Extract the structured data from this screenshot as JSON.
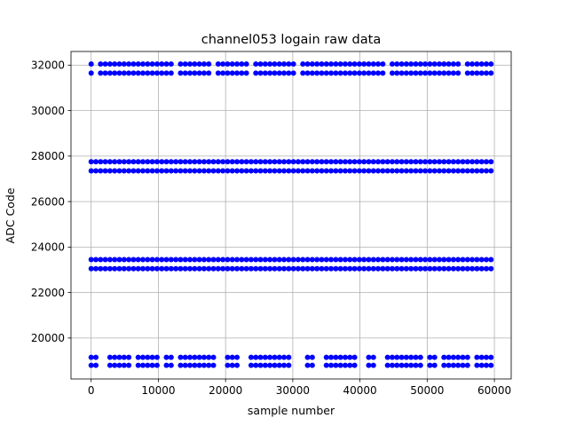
{
  "chart_data": {
    "type": "scatter",
    "title": "channel053 logain raw data",
    "xlabel": "sample number",
    "ylabel": "ADC Code",
    "xlim": [
      -3000,
      62500
    ],
    "ylim": [
      18200,
      32600
    ],
    "xticks": [
      0,
      10000,
      20000,
      30000,
      40000,
      50000,
      60000
    ],
    "xtick_labels": [
      "0",
      "10000",
      "20000",
      "30000",
      "40000",
      "50000",
      "60000"
    ],
    "yticks": [
      20000,
      22000,
      24000,
      26000,
      28000,
      30000,
      32000
    ],
    "ytick_labels": [
      "20000",
      "22000",
      "24000",
      "26000",
      "28000",
      "30000",
      "32000"
    ],
    "grid": true,
    "marker_color": "#0000ff",
    "series": [
      {
        "values_note": "",
        "bands": [
          {
            "y": 32050,
            "x_start": 0,
            "x_end": 59500,
            "gaps": [
              [
                200,
                800
              ],
              [
                12600,
                13100
              ],
              [
                18200,
                18800
              ],
              [
                23700,
                24300
              ],
              [
                30300,
                31300
              ],
              [
                43900,
                44400
              ],
              [
                54800,
                55400
              ]
            ]
          },
          {
            "y": 31650,
            "x_start": 0,
            "x_end": 59500,
            "gaps": [
              [
                200,
                800
              ],
              [
                12600,
                13100
              ],
              [
                18200,
                18800
              ],
              [
                23700,
                24300
              ],
              [
                30300,
                31300
              ],
              [
                43900,
                44400
              ],
              [
                54800,
                55400
              ]
            ]
          },
          {
            "y": 27750,
            "x_start": 0,
            "x_end": 59500,
            "gaps": []
          },
          {
            "y": 27350,
            "x_start": 0,
            "x_end": 59500,
            "gaps": []
          },
          {
            "y": 23450,
            "x_start": 0,
            "x_end": 59500,
            "gaps": []
          },
          {
            "y": 23050,
            "x_start": 0,
            "x_end": 59500,
            "gaps": []
          },
          {
            "y": 19150,
            "x_start": 0,
            "x_end": 59500,
            "gaps": [
              [
                1200,
                2100
              ],
              [
                6100,
                6500
              ],
              [
                10000,
                10600
              ],
              [
                12100,
                12700
              ],
              [
                18300,
                19700
              ],
              [
                20500,
                20900
              ],
              [
                22300,
                23100
              ],
              [
                29900,
                31500
              ],
              [
                33300,
                34300
              ],
              [
                39900,
                40600
              ],
              [
                42500,
                43700
              ],
              [
                49300,
                49900
              ],
              [
                51700,
                52100
              ],
              [
                56700,
                57300
              ]
            ]
          },
          {
            "y": 18800,
            "x_start": 0,
            "x_end": 59500,
            "gaps": [
              [
                1200,
                2100
              ],
              [
                6100,
                6500
              ],
              [
                10000,
                10600
              ],
              [
                12100,
                12700
              ],
              [
                18300,
                19700
              ],
              [
                20500,
                20900
              ],
              [
                22300,
                23100
              ],
              [
                29900,
                31500
              ],
              [
                33300,
                34300
              ],
              [
                39900,
                40600
              ],
              [
                42500,
                43700
              ],
              [
                49300,
                49900
              ],
              [
                51700,
                52100
              ],
              [
                56700,
                57300
              ]
            ]
          }
        ]
      }
    ]
  }
}
